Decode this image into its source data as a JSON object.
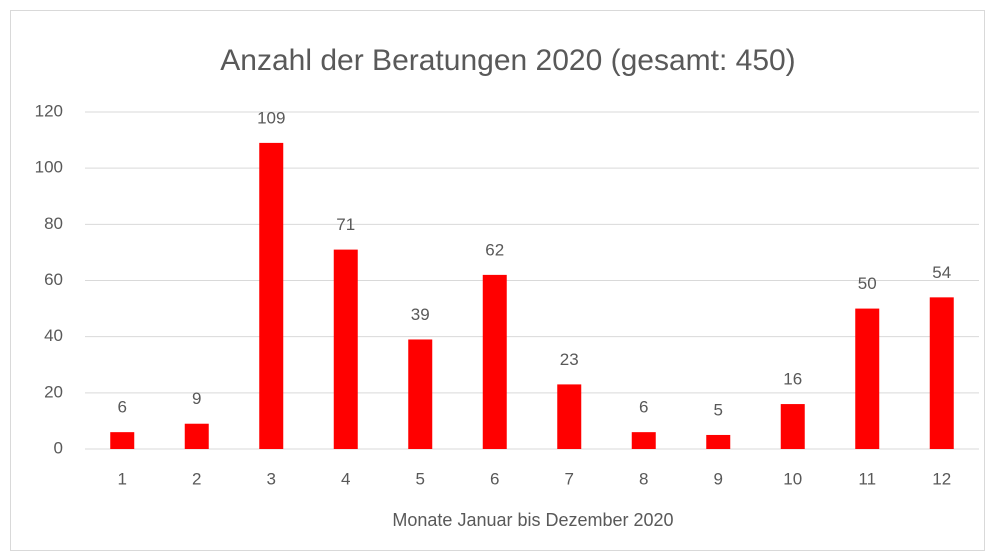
{
  "chart_data": {
    "type": "bar",
    "title": "Anzahl der Beratungen 2020 (gesamt: 450)",
    "x_label": "Monate Januar bis Dezember 2020",
    "categories": [
      "1",
      "2",
      "3",
      "4",
      "5",
      "6",
      "7",
      "8",
      "9",
      "10",
      "11",
      "12"
    ],
    "values": [
      6,
      9,
      109,
      71,
      39,
      62,
      23,
      6,
      5,
      16,
      50,
      54
    ],
    "color": "#ff0000",
    "ylim": [
      0,
      120
    ],
    "yticks": [
      0,
      20,
      40,
      60,
      80,
      100,
      120
    ],
    "grid": true
  }
}
